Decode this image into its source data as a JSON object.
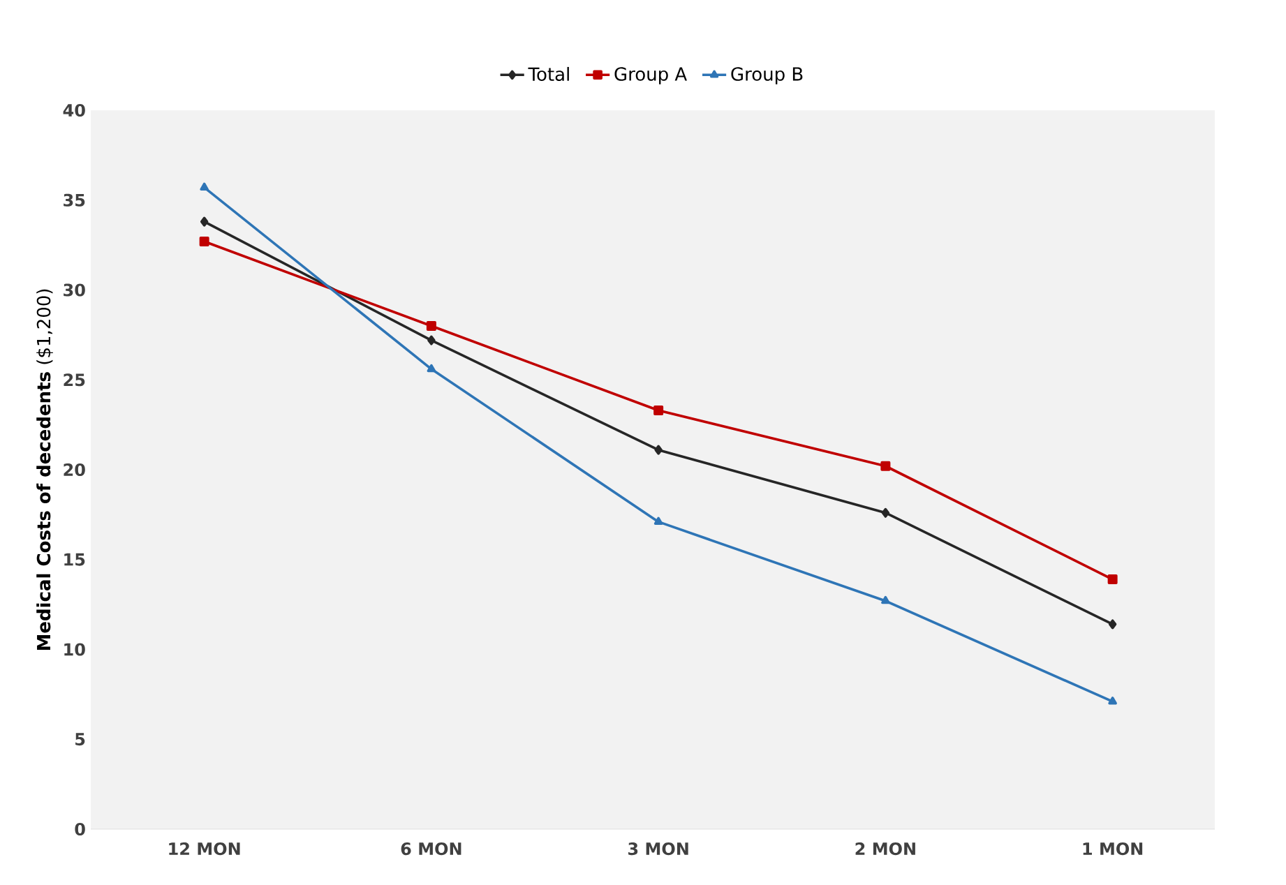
{
  "chart_data": {
    "type": "line",
    "ylabel": "**Medical Costs of decedents** ($1,200)",
    "categories": [
      "12 MON",
      "6 MON",
      "3 MON",
      "2 MON",
      "1 MON"
    ],
    "series": [
      {
        "name": "Total",
        "color": "#262626",
        "marker": "diamond",
        "values": [
          33.8,
          27.2,
          21.1,
          17.6,
          11.4
        ]
      },
      {
        "name": "Group A",
        "color": "#c00000",
        "marker": "square",
        "values": [
          32.7,
          28.0,
          23.3,
          20.2,
          13.9
        ]
      },
      {
        "name": "Group B",
        "color": "#2e75b6",
        "marker": "triangle",
        "values": [
          35.7,
          25.6,
          17.1,
          12.7,
          7.1
        ]
      }
    ],
    "ylim": [
      0,
      40
    ],
    "yticks": [
      0,
      5,
      10,
      15,
      20,
      25,
      30,
      35,
      40
    ],
    "grid": false,
    "legend": "top",
    "line_style": "solid"
  }
}
